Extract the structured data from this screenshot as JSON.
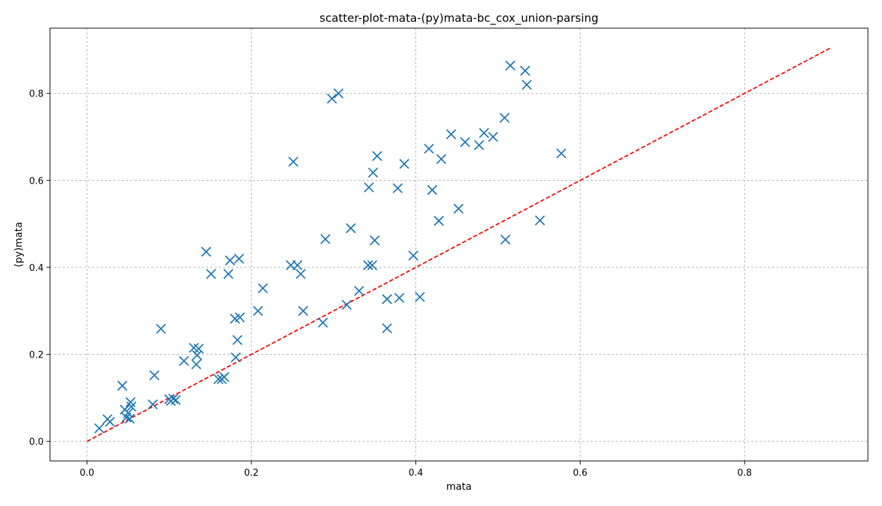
{
  "chart_data": {
    "type": "scatter",
    "title": "scatter-plot-mata-(py)mata-bc_cox_union-parsing",
    "xlabel": "mata",
    "ylabel": "(py)mata",
    "xlim": [
      -0.045,
      0.95
    ],
    "ylim": [
      -0.045,
      0.95
    ],
    "xticks": [
      0.0,
      0.2,
      0.4,
      0.6,
      0.8
    ],
    "yticks": [
      0.0,
      0.2,
      0.4,
      0.6,
      0.8
    ],
    "xtick_labels": [
      "0.0",
      "0.2",
      "0.4",
      "0.6",
      "0.8"
    ],
    "ytick_labels": [
      "0.0",
      "0.2",
      "0.4",
      "0.6",
      "0.8"
    ],
    "grid": true,
    "marker": "x",
    "series_color": "#1f77b4",
    "reference_line": {
      "style": "dashed",
      "color": "#ff0000",
      "from": [
        0.0,
        0.0
      ],
      "to": [
        0.905,
        0.905
      ]
    },
    "x": [
      0.015,
      0.025,
      0.028,
      0.043,
      0.046,
      0.048,
      0.05,
      0.052,
      0.053,
      0.054,
      0.08,
      0.082,
      0.09,
      0.1,
      0.102,
      0.105,
      0.108,
      0.118,
      0.13,
      0.133,
      0.134,
      0.136,
      0.145,
      0.151,
      0.16,
      0.164,
      0.167,
      0.172,
      0.174,
      0.18,
      0.181,
      0.183,
      0.185,
      0.186,
      0.208,
      0.214,
      0.248,
      0.251,
      0.256,
      0.26,
      0.263,
      0.287,
      0.29,
      0.298,
      0.306,
      0.316,
      0.321,
      0.331,
      0.342,
      0.343,
      0.347,
      0.348,
      0.35,
      0.353,
      0.365,
      0.365,
      0.378,
      0.38,
      0.386,
      0.397,
      0.405,
      0.416,
      0.42,
      0.428,
      0.431,
      0.443,
      0.452,
      0.46,
      0.477,
      0.483,
      0.494,
      0.508,
      0.509,
      0.515,
      0.533,
      0.535,
      0.551,
      0.577
    ],
    "y": [
      0.03,
      0.051,
      0.045,
      0.128,
      0.073,
      0.055,
      0.065,
      0.052,
      0.09,
      0.08,
      0.085,
      0.152,
      0.259,
      0.097,
      0.093,
      0.098,
      0.095,
      0.185,
      0.215,
      0.177,
      0.198,
      0.213,
      0.436,
      0.385,
      0.143,
      0.143,
      0.148,
      0.385,
      0.416,
      0.282,
      0.193,
      0.233,
      0.42,
      0.285,
      0.3,
      0.352,
      0.405,
      0.643,
      0.405,
      0.385,
      0.3,
      0.273,
      0.465,
      0.788,
      0.8,
      0.314,
      0.49,
      0.346,
      0.405,
      0.584,
      0.405,
      0.618,
      0.462,
      0.656,
      0.26,
      0.327,
      0.582,
      0.33,
      0.638,
      0.427,
      0.332,
      0.673,
      0.578,
      0.507,
      0.649,
      0.706,
      0.535,
      0.688,
      0.681,
      0.709,
      0.7,
      0.744,
      0.464,
      0.864,
      0.852,
      0.82,
      0.508,
      0.662
    ]
  }
}
